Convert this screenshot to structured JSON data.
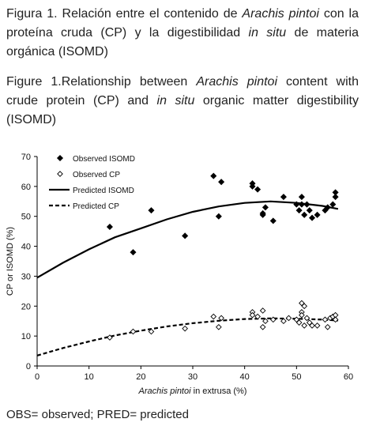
{
  "captions": {
    "es": {
      "prefix": "Figura 1. Relación entre el contenido de ",
      "italic1": "Arachis pintoi",
      "middle": " con la proteína cruda (CP) y la digestibilidad ",
      "italic2": "in situ",
      "suffix": " de materia orgánica (ISOMD)"
    },
    "en": {
      "prefix": "Figure 1.Relationship between ",
      "italic1": "Arachis pintoi",
      "middle": " content with crude protein (CP) and ",
      "italic2": "in situ",
      "suffix": " organic matter digestibility (ISOMD)"
    }
  },
  "footnote": "OBS= observed; PRED= predicted",
  "chart_data": {
    "type": "scatter",
    "xlabel_italic": "Arachis pintoi",
    "xlabel_rest": " in extrusa (%)",
    "ylabel": "CP or ISOMD (%)",
    "xlim": [
      0,
      60
    ],
    "ylim": [
      0,
      70
    ],
    "x_ticks": [
      "0",
      "10",
      "20",
      "30",
      "40",
      "50",
      "60"
    ],
    "y_ticks": [
      "0",
      "10",
      "20",
      "30",
      "40",
      "50",
      "60",
      "70"
    ],
    "grid": false,
    "legend_position": "top-left",
    "series": [
      {
        "name": "Observed ISOMD",
        "kind": "points",
        "marker": "filled-diamond",
        "color": "#000000",
        "points": [
          [
            14,
            46.5
          ],
          [
            18.5,
            38
          ],
          [
            22,
            52
          ],
          [
            28.5,
            43.5
          ],
          [
            34,
            63.5
          ],
          [
            35,
            50
          ],
          [
            35.5,
            61.5
          ],
          [
            41.5,
            61
          ],
          [
            41.5,
            60
          ],
          [
            42.5,
            59
          ],
          [
            43.5,
            51
          ],
          [
            43.5,
            50.5
          ],
          [
            44,
            53
          ],
          [
            45.5,
            48.5
          ],
          [
            47.5,
            56.5
          ],
          [
            50,
            54
          ],
          [
            50.5,
            52
          ],
          [
            51,
            56.5
          ],
          [
            51,
            54
          ],
          [
            51.5,
            50.5
          ],
          [
            52,
            54
          ],
          [
            52.5,
            52
          ],
          [
            53,
            49.5
          ],
          [
            54,
            50.5
          ],
          [
            55.5,
            52
          ],
          [
            56,
            53
          ],
          [
            57,
            54
          ],
          [
            57.5,
            56.5
          ],
          [
            57.5,
            58
          ]
        ]
      },
      {
        "name": "Observed CP",
        "kind": "points",
        "marker": "open-diamond",
        "color": "#000000",
        "points": [
          [
            14,
            9.5
          ],
          [
            18.5,
            11.5
          ],
          [
            22,
            11.5
          ],
          [
            28.5,
            12.5
          ],
          [
            34,
            16.5
          ],
          [
            35,
            13
          ],
          [
            35.5,
            16
          ],
          [
            41.5,
            18
          ],
          [
            41.5,
            17
          ],
          [
            42.5,
            16.5
          ],
          [
            43.5,
            18.5
          ],
          [
            43.5,
            13
          ],
          [
            44,
            15
          ],
          [
            45.5,
            15.5
          ],
          [
            47.5,
            15
          ],
          [
            48.5,
            16
          ],
          [
            50,
            15.5
          ],
          [
            50.5,
            14.5
          ],
          [
            51,
            18
          ],
          [
            51,
            17
          ],
          [
            51,
            21
          ],
          [
            51.5,
            20
          ],
          [
            51.5,
            13.5
          ],
          [
            52,
            16
          ],
          [
            52.5,
            14.5
          ],
          [
            53,
            13.5
          ],
          [
            54,
            13.5
          ],
          [
            55.5,
            15.5
          ],
          [
            56,
            13
          ],
          [
            56.5,
            16
          ],
          [
            57,
            16.5
          ],
          [
            57.5,
            17
          ],
          [
            57.5,
            15.5
          ]
        ]
      },
      {
        "name": "Predicted ISOMD",
        "kind": "line",
        "dash": "solid",
        "color": "#000000",
        "points": [
          [
            0,
            29.5
          ],
          [
            5,
            34.5
          ],
          [
            10,
            39
          ],
          [
            15,
            43
          ],
          [
            20,
            46
          ],
          [
            25,
            49
          ],
          [
            30,
            51.5
          ],
          [
            35,
            53.3
          ],
          [
            40,
            54.5
          ],
          [
            45,
            55
          ],
          [
            50,
            54.5
          ],
          [
            55,
            53.5
          ],
          [
            58,
            52.5
          ]
        ]
      },
      {
        "name": "Predicted CP",
        "kind": "line",
        "dash": "dashed",
        "color": "#000000",
        "points": [
          [
            0,
            3.5
          ],
          [
            5,
            6
          ],
          [
            10,
            8.2
          ],
          [
            15,
            10.2
          ],
          [
            20,
            11.8
          ],
          [
            25,
            13.2
          ],
          [
            30,
            14.3
          ],
          [
            35,
            15.1
          ],
          [
            40,
            15.7
          ],
          [
            45,
            15.9
          ],
          [
            50,
            15.8
          ],
          [
            55,
            15.5
          ],
          [
            58,
            15.2
          ]
        ]
      }
    ]
  }
}
